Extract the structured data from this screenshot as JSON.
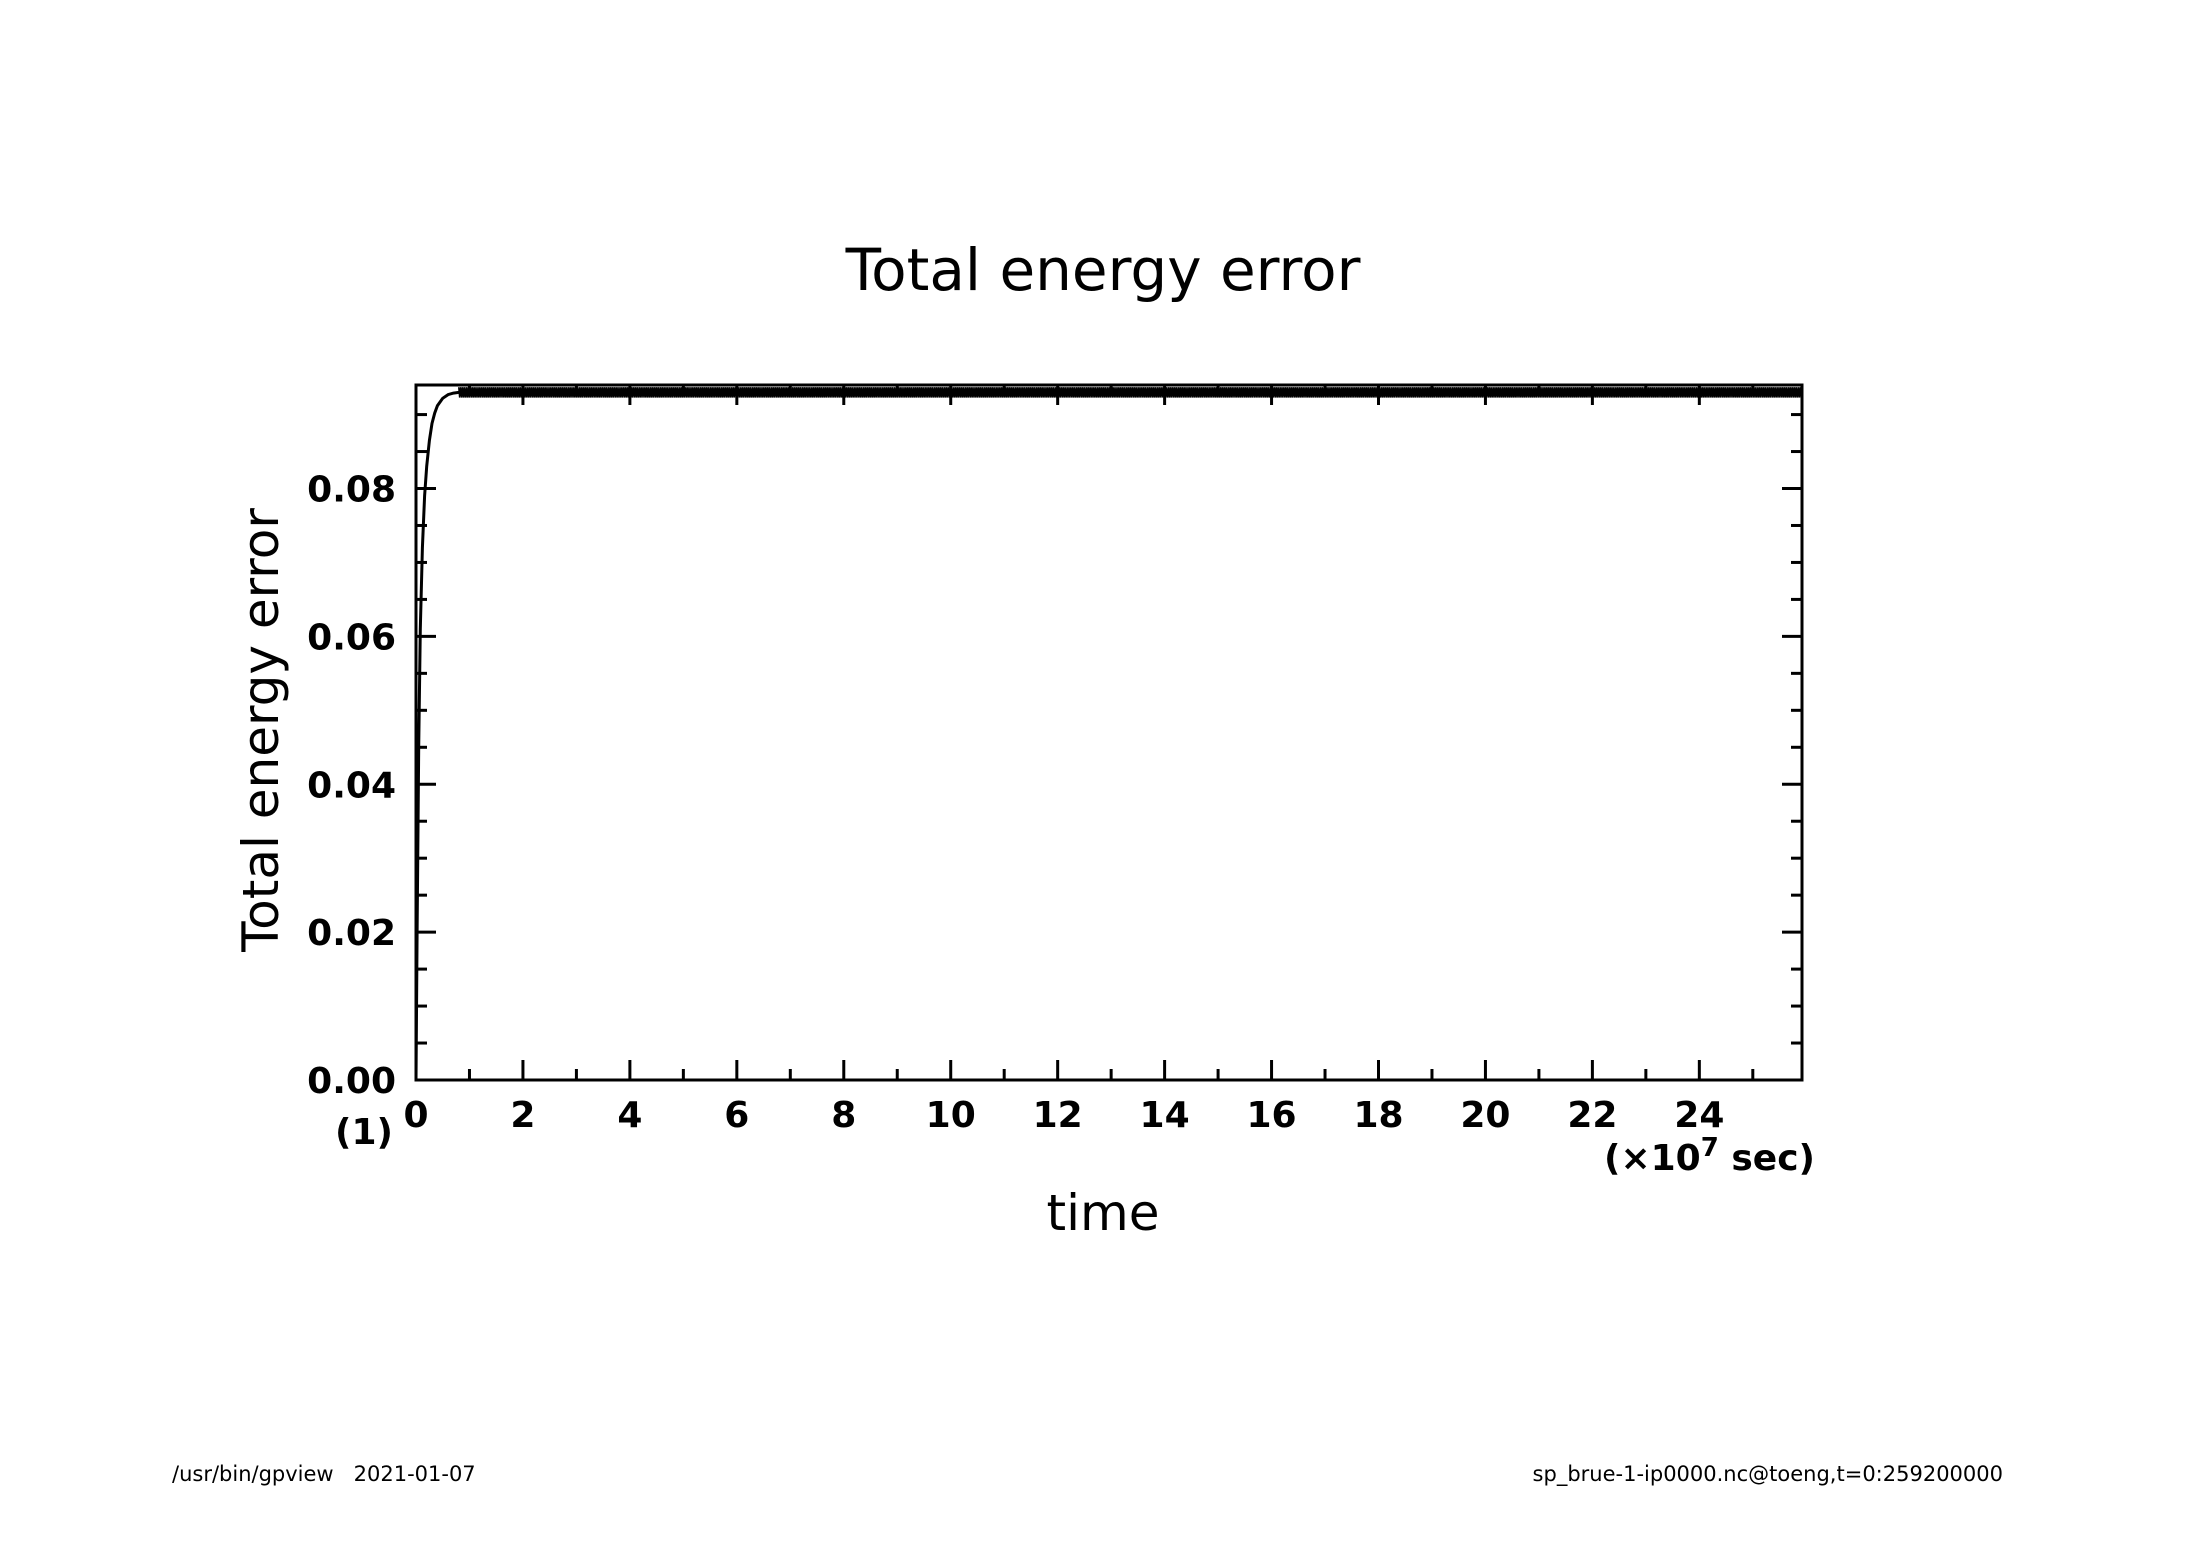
{
  "footer": {
    "left": "/usr/bin/gpview   2021-01-07",
    "right": "sp_brue-1-ip0000.nc@toeng,t=0:259200000"
  },
  "chart_data": {
    "type": "line",
    "title": "Total energy error",
    "xlabel": "time",
    "ylabel": "Total energy error",
    "x_unit_prefix": "(×10",
    "x_unit_exponent": "7",
    "x_unit_suffix": " sec)",
    "y_index_label": "(1)",
    "xlim": [
      0,
      25.92
    ],
    "ylim": [
      0,
      0.094
    ],
    "x_ticks": [
      "0",
      "2",
      "4",
      "6",
      "8",
      "10",
      "12",
      "14",
      "16",
      "18",
      "20",
      "22",
      "24"
    ],
    "y_ticks": [
      "0.00",
      "0.02",
      "0.04",
      "0.06",
      "0.08"
    ],
    "grid": false,
    "series": [
      {
        "color": "#000000",
        "x": [
          0,
          0.02,
          0.05,
          0.08,
          0.12,
          0.16,
          0.2,
          0.25,
          0.3,
          0.35,
          0.4,
          0.5,
          0.6,
          0.7,
          0.8,
          1.0,
          1.5,
          3,
          6,
          10,
          14,
          18,
          22,
          25.92
        ],
        "y": [
          0,
          0.02,
          0.045,
          0.061,
          0.072,
          0.079,
          0.083,
          0.0865,
          0.0888,
          0.0902,
          0.0912,
          0.0922,
          0.0927,
          0.0929,
          0.093,
          0.093,
          0.093,
          0.093,
          0.093,
          0.093,
          0.093,
          0.093,
          0.093,
          0.093
        ]
      }
    ],
    "band_amplitude": 0.0007
  }
}
